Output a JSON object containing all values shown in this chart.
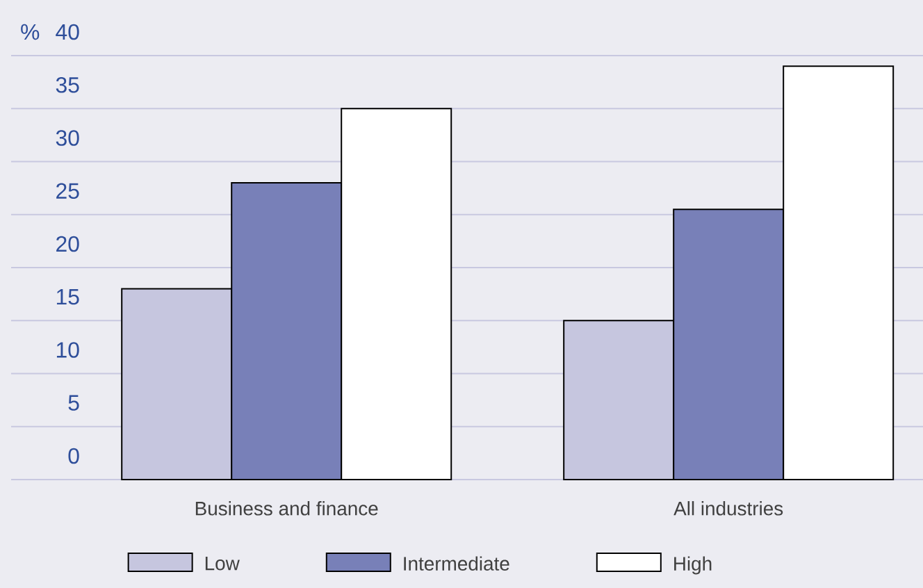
{
  "chart_data": {
    "type": "bar",
    "ylabel": "%",
    "categories": [
      "Business and finance",
      "All industries"
    ],
    "series": [
      {
        "name": "Low",
        "color": "#c6c6df",
        "values": [
          18,
          15
        ]
      },
      {
        "name": "Intermediate",
        "color": "#7880b8",
        "values": [
          28,
          25.5
        ]
      },
      {
        "name": "High",
        "color": "#ffffff",
        "values": [
          35,
          39
        ]
      }
    ],
    "ylim": [
      0,
      40
    ],
    "yticks": [
      0,
      5,
      10,
      15,
      20,
      25,
      30,
      35,
      40
    ],
    "grid": "y",
    "legend": "bottom"
  }
}
